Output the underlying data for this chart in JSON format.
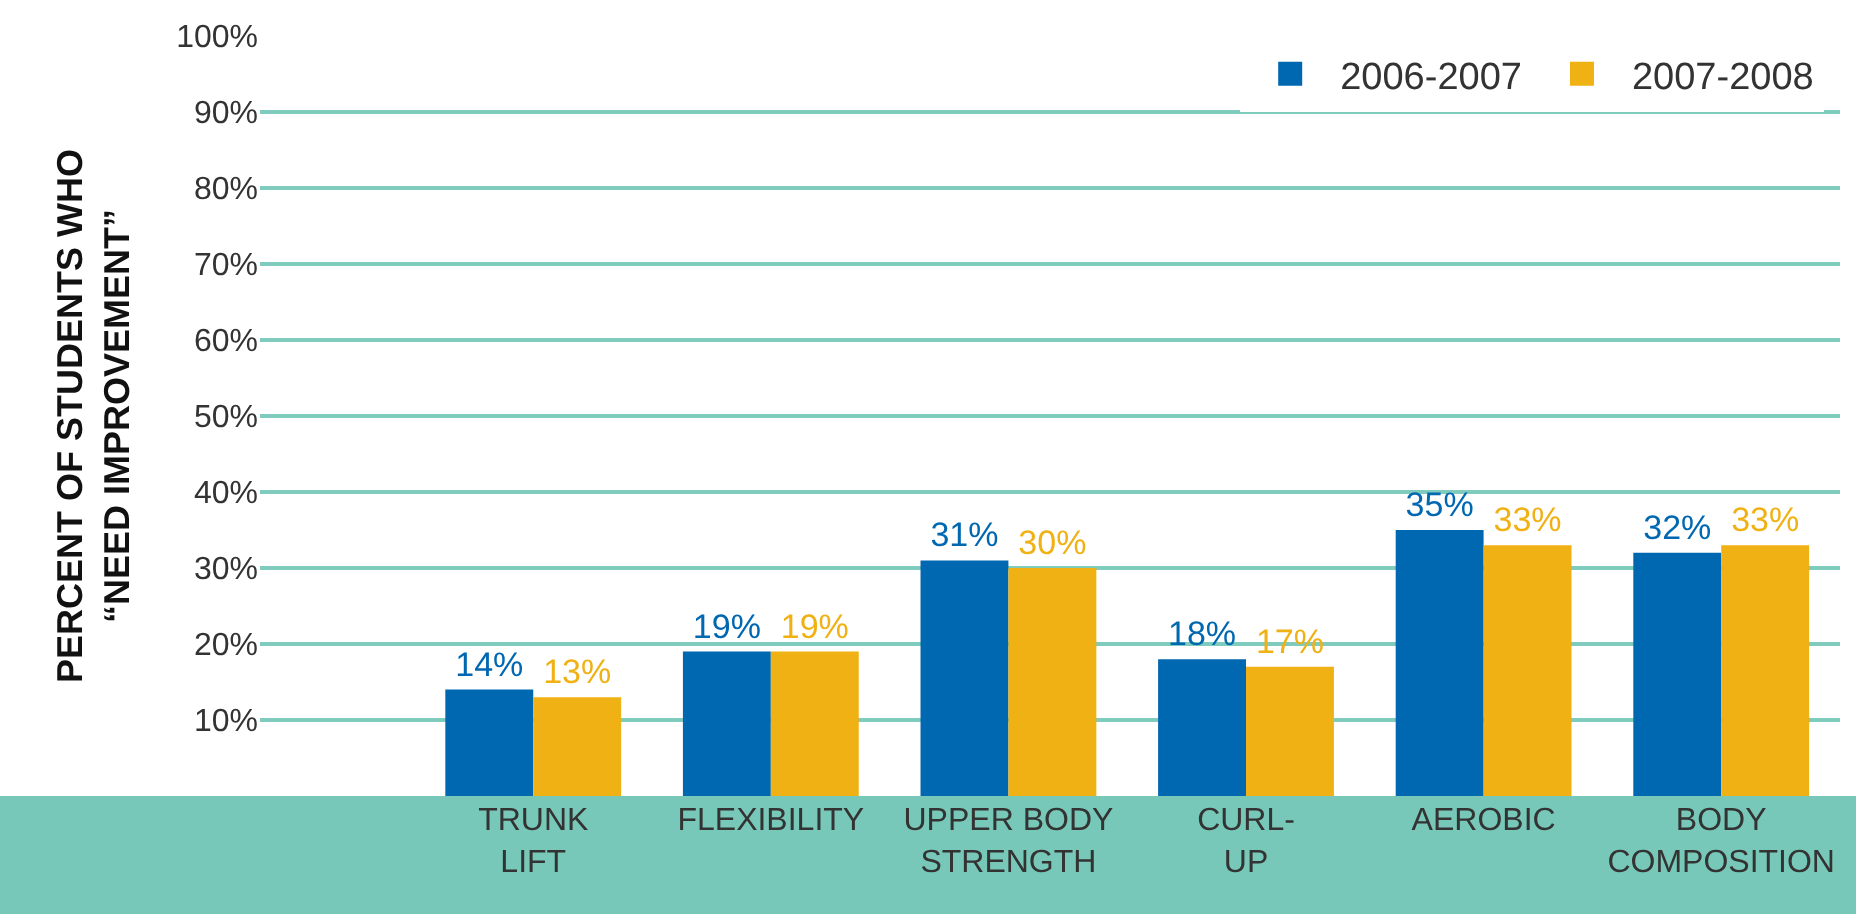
{
  "chart_data": {
    "type": "bar",
    "ylabel": "PERCENT OF STUDENTS WHO\n“NEED IMPROVEMENT”",
    "categories": [
      "TRUNK\nLIFT",
      "FLEXIBILITY",
      "UPPER BODY\nSTRENGTH",
      "CURL-\nUP",
      "AEROBIC",
      "BODY\nCOMPOSITION"
    ],
    "series": [
      {
        "name": "2006-2007",
        "color": "#0067b1",
        "values": [
          14,
          19,
          31,
          18,
          35,
          32
        ],
        "value_labels": [
          "14%",
          "19%",
          "31%",
          "18%",
          "35%",
          "32%"
        ]
      },
      {
        "name": "2007-2008",
        "color": "#f0b114",
        "values": [
          13,
          19,
          30,
          17,
          33,
          33
        ],
        "value_labels": [
          "13%",
          "19%",
          "30%",
          "17%",
          "33%",
          "33%"
        ]
      }
    ],
    "ylim": [
      0,
      100
    ],
    "yticks": [
      {
        "value": 10,
        "label": "10%"
      },
      {
        "value": 20,
        "label": "20%"
      },
      {
        "value": 30,
        "label": "30%"
      },
      {
        "value": 40,
        "label": "40%"
      },
      {
        "value": 50,
        "label": "50%"
      },
      {
        "value": 60,
        "label": "60%"
      },
      {
        "value": 70,
        "label": "70%"
      },
      {
        "value": 80,
        "label": "80%"
      },
      {
        "value": 90,
        "label": "90%"
      },
      {
        "value": 100,
        "label": "100%"
      }
    ],
    "grid": "y",
    "legend": "top right"
  }
}
